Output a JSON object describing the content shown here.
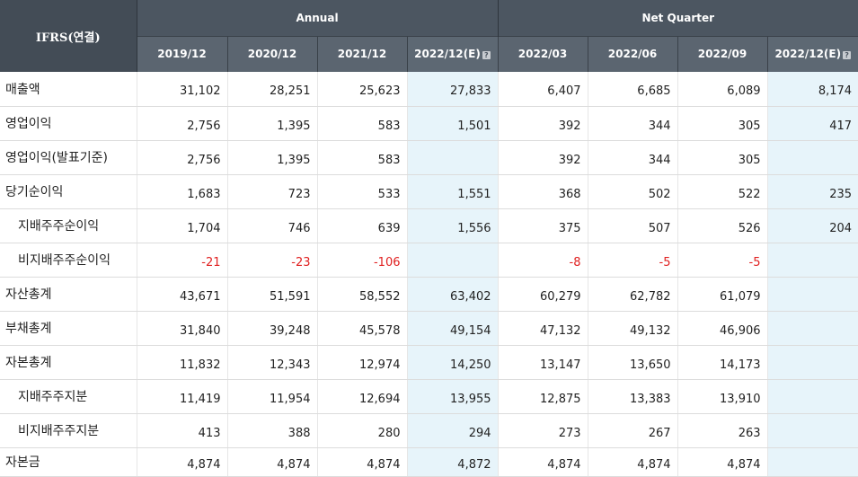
{
  "table": {
    "corner_label": "IFRS(연결)",
    "group_annual": "Annual",
    "group_quarter": "Net Quarter",
    "help_icon": "question-icon",
    "periods": [
      "2019/12",
      "2020/12",
      "2021/12",
      "2022/12(E)",
      "2022/03",
      "2022/06",
      "2022/09",
      "2022/12(E)"
    ],
    "estimate_columns": [
      3,
      7
    ],
    "rows": [
      {
        "label": "매출액",
        "indent": false,
        "values": [
          "31,102",
          "28,251",
          "25,623",
          "27,833",
          "6,407",
          "6,685",
          "6,089",
          "8,174"
        ]
      },
      {
        "label": "영업이익",
        "indent": false,
        "values": [
          "2,756",
          "1,395",
          "583",
          "1,501",
          "392",
          "344",
          "305",
          "417"
        ]
      },
      {
        "label": "영업이익(발표기준)",
        "indent": false,
        "values": [
          "2,756",
          "1,395",
          "583",
          "",
          "392",
          "344",
          "305",
          ""
        ]
      },
      {
        "label": "당기순이익",
        "indent": false,
        "values": [
          "1,683",
          "723",
          "533",
          "1,551",
          "368",
          "502",
          "522",
          "235"
        ]
      },
      {
        "label": "지배주주순이익",
        "indent": true,
        "values": [
          "1,704",
          "746",
          "639",
          "1,556",
          "375",
          "507",
          "526",
          "204"
        ]
      },
      {
        "label": "비지배주주순이익",
        "indent": true,
        "values": [
          "-21",
          "-23",
          "-106",
          "",
          "-8",
          "-5",
          "-5",
          ""
        ]
      },
      {
        "label": "자산총계",
        "indent": false,
        "values": [
          "43,671",
          "51,591",
          "58,552",
          "63,402",
          "60,279",
          "62,782",
          "61,079",
          ""
        ]
      },
      {
        "label": "부채총계",
        "indent": false,
        "values": [
          "31,840",
          "39,248",
          "45,578",
          "49,154",
          "47,132",
          "49,132",
          "46,906",
          ""
        ]
      },
      {
        "label": "자본총계",
        "indent": false,
        "values": [
          "11,832",
          "12,343",
          "12,974",
          "14,250",
          "13,147",
          "13,650",
          "14,173",
          ""
        ]
      },
      {
        "label": "지배주주지분",
        "indent": true,
        "values": [
          "11,419",
          "11,954",
          "12,694",
          "13,955",
          "12,875",
          "13,383",
          "13,910",
          ""
        ]
      },
      {
        "label": "비지배주주지분",
        "indent": true,
        "values": [
          "413",
          "388",
          "280",
          "294",
          "273",
          "267",
          "263",
          ""
        ]
      },
      {
        "label": "자본금",
        "indent": false,
        "values": [
          "4,874",
          "4,874",
          "4,874",
          "4,872",
          "4,874",
          "4,874",
          "4,874",
          ""
        ]
      }
    ],
    "colors": {
      "header_dark": "#434c56",
      "header_mid": "#5b6570",
      "estimate_bg": "#e7f4fa",
      "negative": "#e02020"
    }
  }
}
